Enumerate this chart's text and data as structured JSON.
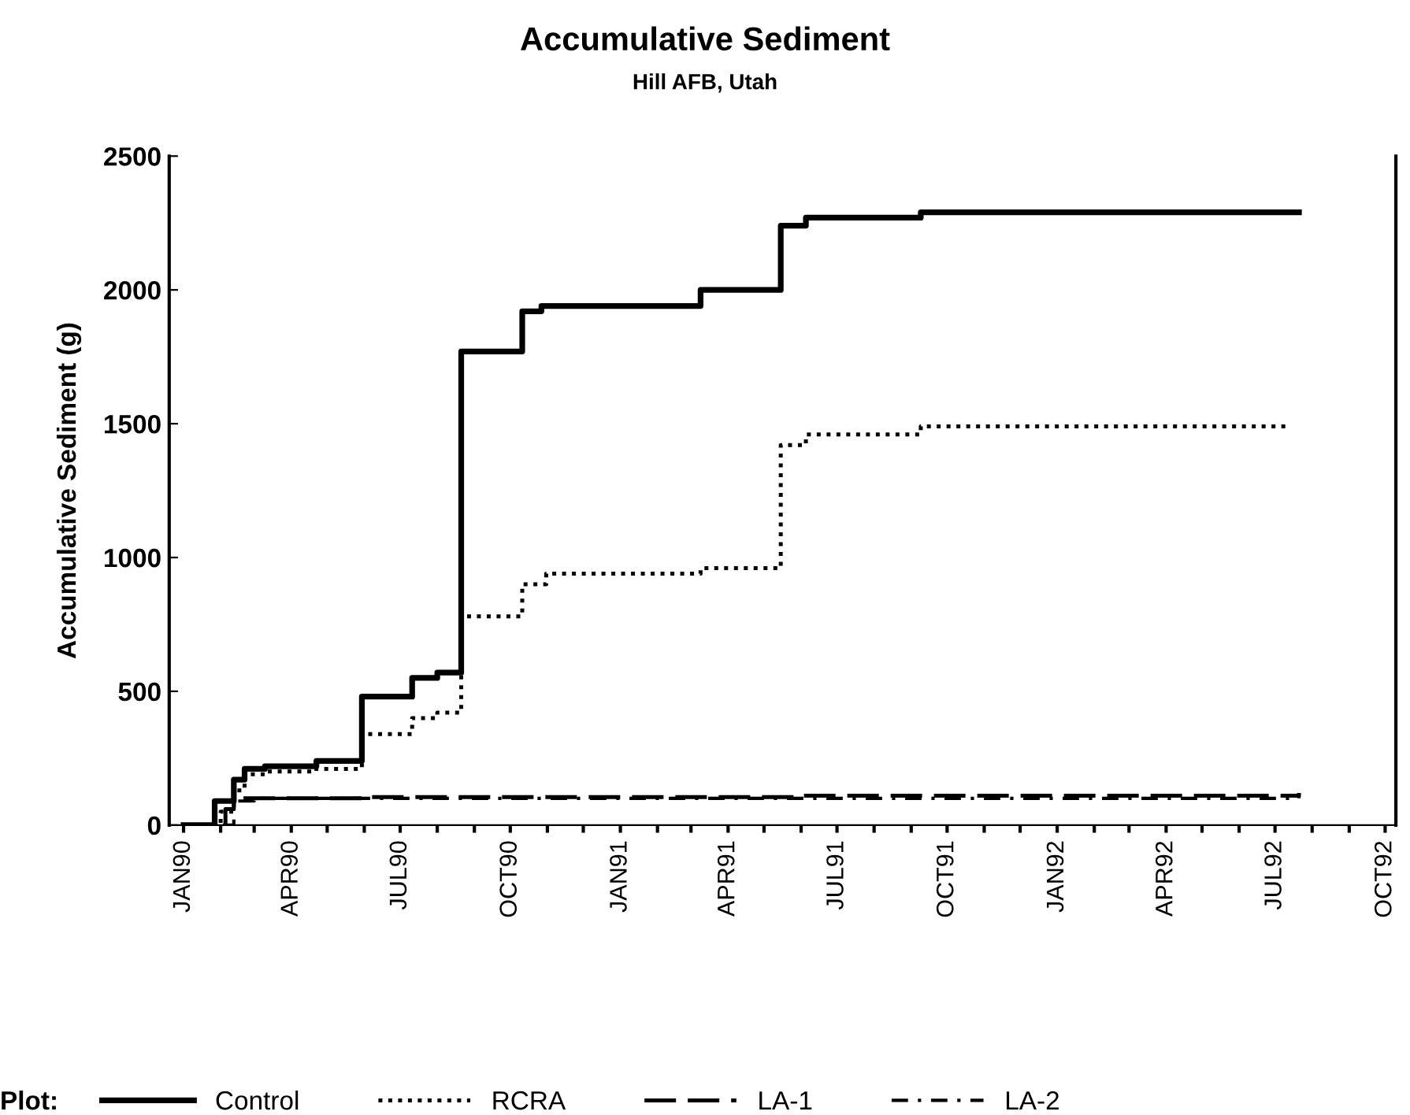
{
  "chart_data": {
    "type": "step",
    "title": "Accumulative Sediment",
    "subtitle": "Hill AFB, Utah",
    "ylabel": "Accumulative Sediment (g)",
    "legend_title": "Plot:",
    "legend": "bottom",
    "grid": false,
    "xlim": [
      "1989-12-20",
      "1992-10-10"
    ],
    "ylim": [
      0,
      2500
    ],
    "yticks": [
      0,
      500,
      1000,
      1500,
      2000,
      2500
    ],
    "xticks": [
      {
        "value": "1990-01-01",
        "label": "JAN90"
      },
      {
        "value": "1990-02-01",
        "label": null
      },
      {
        "value": "1990-03-01",
        "label": null
      },
      {
        "value": "1990-04-01",
        "label": "APR90"
      },
      {
        "value": "1990-05-01",
        "label": null
      },
      {
        "value": "1990-06-01",
        "label": null
      },
      {
        "value": "1990-07-01",
        "label": "JUL90"
      },
      {
        "value": "1990-08-01",
        "label": null
      },
      {
        "value": "1990-09-01",
        "label": null
      },
      {
        "value": "1990-10-01",
        "label": "OCT90"
      },
      {
        "value": "1990-11-01",
        "label": null
      },
      {
        "value": "1990-12-01",
        "label": null
      },
      {
        "value": "1991-01-01",
        "label": "JAN91"
      },
      {
        "value": "1991-02-01",
        "label": null
      },
      {
        "value": "1991-03-01",
        "label": null
      },
      {
        "value": "1991-04-01",
        "label": "APR91"
      },
      {
        "value": "1991-05-01",
        "label": null
      },
      {
        "value": "1991-06-01",
        "label": null
      },
      {
        "value": "1991-07-01",
        "label": "JUL91"
      },
      {
        "value": "1991-08-01",
        "label": null
      },
      {
        "value": "1991-09-01",
        "label": null
      },
      {
        "value": "1991-10-01",
        "label": "OCT91"
      },
      {
        "value": "1991-11-01",
        "label": null
      },
      {
        "value": "1991-12-01",
        "label": null
      },
      {
        "value": "1992-01-01",
        "label": "JAN92"
      },
      {
        "value": "1992-02-01",
        "label": null
      },
      {
        "value": "1992-03-01",
        "label": null
      },
      {
        "value": "1992-04-01",
        "label": "APR92"
      },
      {
        "value": "1992-05-01",
        "label": null
      },
      {
        "value": "1992-06-01",
        "label": null
      },
      {
        "value": "1992-07-01",
        "label": "JUL92"
      },
      {
        "value": "1992-08-01",
        "label": null
      },
      {
        "value": "1992-09-01",
        "label": null
      },
      {
        "value": "1992-10-01",
        "label": "OCT92"
      }
    ],
    "series": [
      {
        "name": "Control",
        "color": "#000000",
        "line_style": "solid",
        "x": [
          "1990-01-01",
          "1990-01-27",
          "1990-02-12",
          "1990-02-21",
          "1990-03-10",
          "1990-04-22",
          "1990-05-30",
          "1990-07-11",
          "1990-08-01",
          "1990-08-21",
          "1990-10-11",
          "1990-10-27",
          "1991-03-09",
          "1991-05-15",
          "1991-06-05",
          "1991-09-09",
          "1992-07-21"
        ],
        "values": [
          0,
          90,
          170,
          210,
          220,
          240,
          480,
          550,
          570,
          1770,
          1920,
          1940,
          2000,
          2240,
          2270,
          2290,
          2290
        ]
      },
      {
        "name": "RCRA",
        "color": "#000000",
        "line_style": "dotted",
        "x": [
          "1990-01-01",
          "1990-02-01",
          "1990-02-12",
          "1990-02-21",
          "1990-03-10",
          "1990-04-22",
          "1990-05-30",
          "1990-07-11",
          "1990-08-01",
          "1990-08-21",
          "1990-10-11",
          "1990-10-31",
          "1991-03-09",
          "1991-05-15",
          "1991-06-05",
          "1991-09-09",
          "1992-07-14"
        ],
        "values": [
          0,
          50,
          130,
          190,
          200,
          210,
          340,
          400,
          420,
          780,
          900,
          940,
          960,
          1420,
          1460,
          1490,
          1490
        ]
      },
      {
        "name": "LA-1",
        "color": "#000000",
        "line_style": "dashed",
        "x": [
          "1990-01-01",
          "1990-02-05",
          "1990-02-12",
          "1990-06-01",
          "1991-06-01",
          "1992-07-21"
        ],
        "values": [
          0,
          60,
          100,
          105,
          110,
          120
        ]
      },
      {
        "name": "LA-2",
        "color": "#000000",
        "line_style": "dashdot",
        "x": [
          "1990-01-01",
          "1990-02-12",
          "1990-03-01",
          "1992-07-21"
        ],
        "values": [
          0,
          90,
          100,
          110
        ]
      }
    ]
  }
}
